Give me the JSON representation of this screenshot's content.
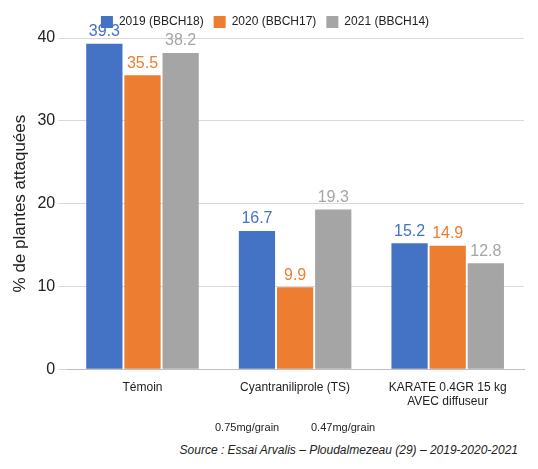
{
  "chart_data": {
    "type": "bar",
    "y_label": "% de plantes attaquées",
    "categories": [
      "Témoin",
      "Cyantraniliprole (TS)",
      [
        "KARATE 0.4GR 15 kg",
        "AVEC diffuseur"
      ]
    ],
    "series": [
      {
        "name": "2019 (BBCH18)",
        "color": "#4472c4",
        "values": [
          39.3,
          16.7,
          15.2
        ]
      },
      {
        "name": "2020 (BBCH17)",
        "color": "#ed7d31",
        "values": [
          35.5,
          9.9,
          14.9
        ]
      },
      {
        "name": "2021 (BBCH14)",
        "color": "#a5a5a5",
        "values": [
          38.2,
          19.3,
          12.8
        ]
      }
    ],
    "annotations": [
      "0.75mg/grain",
      "0.47mg/grain"
    ],
    "source": "Source : Essai Arvalis – Ploudalmezeau (29) – 2019-2020-2021",
    "ylim": [
      0,
      40
    ],
    "yticks": [
      0,
      10,
      20,
      30,
      40
    ],
    "grid": true,
    "legend": "top",
    "data_labels": true
  }
}
